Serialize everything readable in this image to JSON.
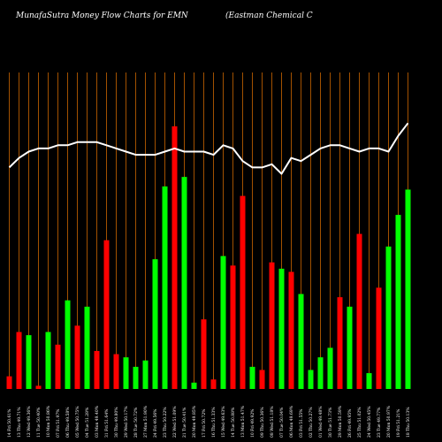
{
  "header": {
    "title_left": "MunafaSutra  Money Flow  Charts for EMN",
    "title_right": "(Eastman  Chemical C"
  },
  "colors": {
    "background": "#000000",
    "up": "#00ff00",
    "down": "#ff0000",
    "line": "#ffffff",
    "grid": "#cc6600"
  },
  "chart_data": {
    "type": "bar",
    "title": "MunafaSutra  Money Flow  Charts for EMN",
    "grid": true,
    "bar_ylim": [
      0,
      100
    ],
    "line_ylim": [
      0,
      100
    ],
    "x": [
      "14 Fri 50.61%",
      "13 Thu 49.71%",
      "12 Wed 49.36%",
      "11 Tue 50.40%",
      "10 Mon 50.86%",
      "07 Fri 51.97%",
      "06 Thu 49.58%",
      "05 Wed 50.75%",
      "04 Tue 51.28%",
      "03 Mon 49.40%",
      "31 Fri 51.64%",
      "30 Thu 49.80%",
      "29 Wed 50.17%",
      "28 Tue 50.72%",
      "27 Mon 51.90%",
      "24 Fri 49.56%",
      "23 Thu 50.22%",
      "22 Wed 51.09%",
      "21 Tue 50.41%",
      "20 Mon 49.85%",
      "17 Fri 50.72%",
      "16 Thu 51.33%",
      "15 Wed 49.63%",
      "14 Tue 50.88%",
      "13 Mon 51.47%",
      "10 Fri 49.92%",
      "09 Thu 50.36%",
      "08 Wed 51.18%",
      "07 Tue 50.04%",
      "06 Mon 49.69%",
      "03 Fri 51.55%",
      "02 Thu 50.27%",
      "01 Wed 49.48%",
      "30 Tue 51.73%",
      "29 Mon 50.59%",
      "26 Fri 49.95%",
      "25 Thu 51.02%",
      "24 Wed 50.45%",
      "23 Tue 49.77%",
      "20 Mon 50.97%",
      "19 Fri 51.21%",
      "18 Thu 50.13%"
    ],
    "series": [
      {
        "kind": "bars",
        "values": [
          4,
          18,
          17,
          1,
          18,
          14,
          28,
          20,
          26,
          12,
          47,
          11,
          10,
          7,
          9,
          41,
          64,
          83,
          67,
          2,
          22,
          3,
          42,
          39,
          61,
          7,
          6,
          40,
          38,
          37,
          30,
          6,
          10,
          13,
          29,
          26,
          49,
          5,
          32,
          45,
          55,
          63
        ],
        "colors": [
          "down",
          "down",
          "up",
          "down",
          "up",
          "down",
          "up",
          "down",
          "up",
          "down",
          "down",
          "down",
          "up",
          "up",
          "up",
          "up",
          "up",
          "down",
          "up",
          "up",
          "down",
          "down",
          "up",
          "down",
          "down",
          "up",
          "down",
          "down",
          "up",
          "down",
          "up",
          "up",
          "up",
          "up",
          "down",
          "up",
          "down",
          "up",
          "down",
          "up",
          "up",
          "up"
        ]
      },
      {
        "kind": "line",
        "values": [
          70,
          73,
          75,
          76,
          76,
          77,
          77,
          78,
          78,
          78,
          77,
          76,
          75,
          74,
          74,
          74,
          75,
          76,
          75,
          75,
          75,
          74,
          77,
          76,
          72,
          70,
          70,
          71,
          68,
          73,
          72,
          74,
          76,
          77,
          77,
          76,
          75,
          76,
          76,
          75,
          80,
          84
        ]
      }
    ]
  }
}
